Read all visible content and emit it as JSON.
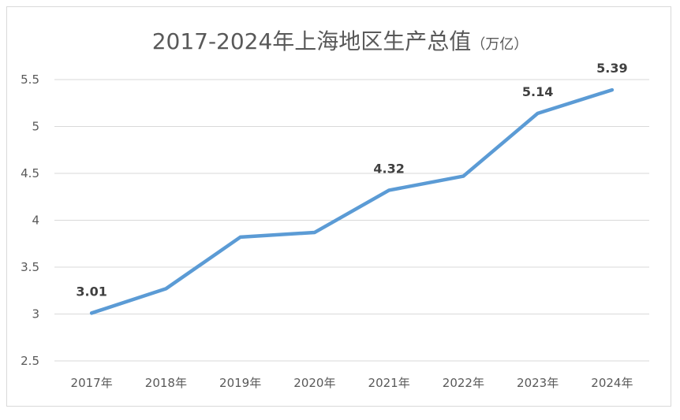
{
  "chart_data": {
    "type": "line",
    "title": "2017-2024年上海地区生产总值",
    "title_unit": "（万亿）",
    "categories": [
      "2017年",
      "2018年",
      "2019年",
      "2020年",
      "2021年",
      "2022年",
      "2023年",
      "2024年"
    ],
    "series": [
      {
        "values": [
          3.01,
          3.27,
          3.82,
          3.87,
          4.32,
          4.47,
          5.14,
          5.39
        ],
        "color": "#5b9bd5"
      }
    ],
    "data_labels": [
      {
        "index": 0,
        "text": "3.01"
      },
      {
        "index": 4,
        "text": "4.32"
      },
      {
        "index": 6,
        "text": "5.14"
      },
      {
        "index": 7,
        "text": "5.39"
      }
    ],
    "y_ticks": [
      "2.5",
      "3",
      "3.5",
      "4",
      "4.5",
      "5",
      "5.5"
    ],
    "ylim": [
      2.5,
      5.5
    ],
    "grid": true,
    "legend": "none",
    "xlabel": "",
    "ylabel": "",
    "colors": {
      "grid": "#d9d9d9",
      "text": "#595959",
      "label": "#404040",
      "line": "#5b9bd5"
    }
  }
}
